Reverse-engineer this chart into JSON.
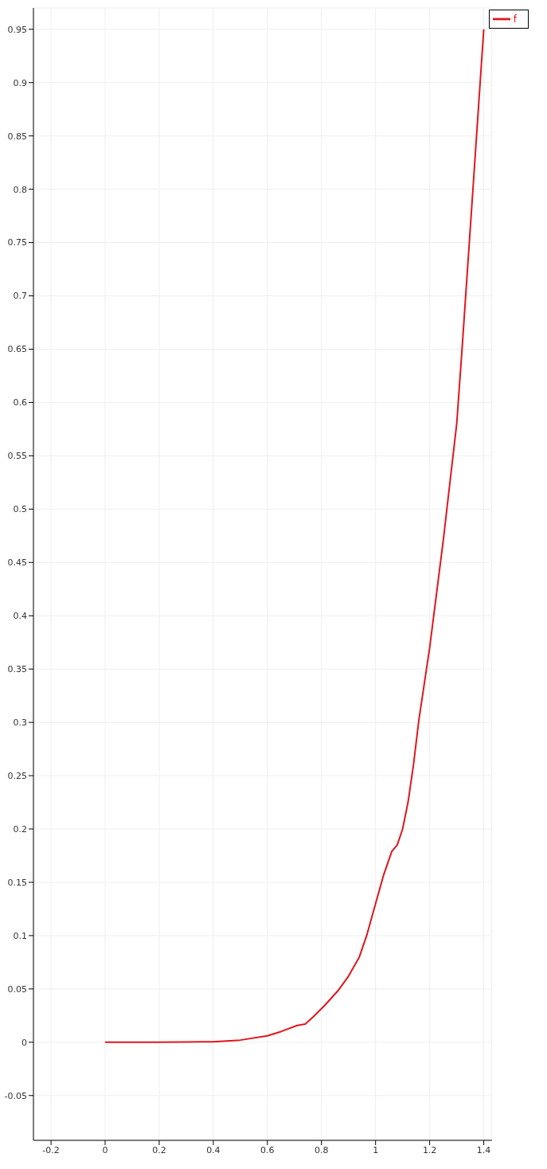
{
  "chart_data": {
    "type": "line",
    "x": [
      0,
      0.2,
      0.3,
      0.4,
      0.5,
      0.6,
      0.65,
      0.71,
      0.74,
      0.77,
      0.81,
      0.86,
      0.9,
      0.94,
      0.967,
      1.0,
      1.03,
      1.06,
      1.08,
      1.1,
      1.12,
      1.14,
      1.16,
      1.2,
      1.25,
      1.3,
      1.32,
      1.36,
      1.4
    ],
    "series": [
      {
        "name": "f",
        "color": "#e0161c",
        "values": [
          0,
          0,
          0.0002,
          0.0005,
          0.002,
          0.006,
          0.01,
          0.0157,
          0.017,
          0.024,
          0.034,
          0.048,
          0.062,
          0.08,
          0.1,
          0.13,
          0.157,
          0.179,
          0.185,
          0.2,
          0.225,
          0.26,
          0.302,
          0.37,
          0.47,
          0.58,
          0.651,
          0.8,
          0.95
        ]
      }
    ],
    "xlim": [
      -0.265,
      1.43
    ],
    "xticks": [
      -0.2,
      0,
      0.2,
      0.4,
      0.6,
      0.8,
      1,
      1.2,
      1.4
    ],
    "ylim": [
      -0.092,
      0.97
    ],
    "yticks": [
      -0.05,
      0,
      0.05,
      0.1,
      0.15,
      0.2,
      0.25,
      0.3,
      0.35,
      0.4,
      0.45,
      0.5,
      0.55,
      0.6,
      0.65,
      0.7,
      0.75,
      0.8,
      0.85,
      0.9,
      0.95
    ],
    "grid": true,
    "legend": "top right",
    "marker": "none",
    "line_style": "solid"
  }
}
